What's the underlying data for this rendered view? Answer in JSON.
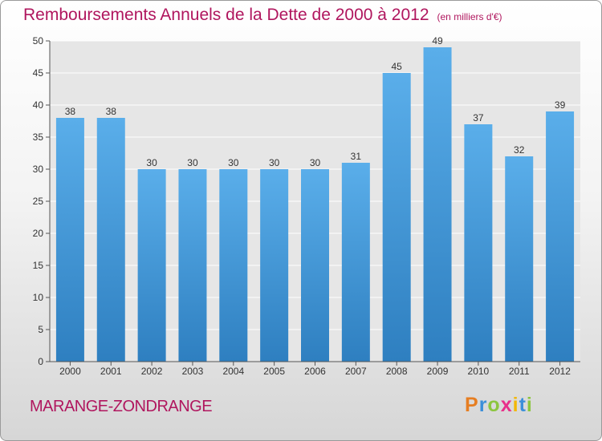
{
  "header": {
    "title": "Remboursements Annuels de la Dette de 2000 à 2012",
    "unit": "(en milliers d'€)"
  },
  "footer": {
    "commune": "MARANGE-ZONDRANGE",
    "brand_letters": [
      "P",
      "r",
      "o",
      "x",
      "i",
      "t",
      "i"
    ],
    "brand_colors": [
      "#e67e22",
      "#3b8fd9",
      "#8cc63f",
      "#e8308a",
      "#f2b705",
      "#3b8fd9",
      "#8cc63f"
    ]
  },
  "colors": {
    "bar_top": "#5aaeea",
    "bar_bottom": "#2e7fc0",
    "title": "#b0165e"
  },
  "chart_data": {
    "type": "bar",
    "title": "Remboursements Annuels de la Dette de 2000 à 2012",
    "ylabel": "en milliers d'€",
    "xlabel": "",
    "categories": [
      "2000",
      "2001",
      "2002",
      "2003",
      "2004",
      "2005",
      "2006",
      "2007",
      "2008",
      "2009",
      "2010",
      "2011",
      "2012"
    ],
    "values": [
      38,
      38,
      30,
      30,
      30,
      30,
      30,
      31,
      45,
      49,
      37,
      32,
      39
    ],
    "ylim": [
      0,
      50
    ],
    "yticks": [
      0,
      5,
      10,
      15,
      20,
      25,
      30,
      35,
      40,
      45,
      50
    ],
    "grid": true
  }
}
